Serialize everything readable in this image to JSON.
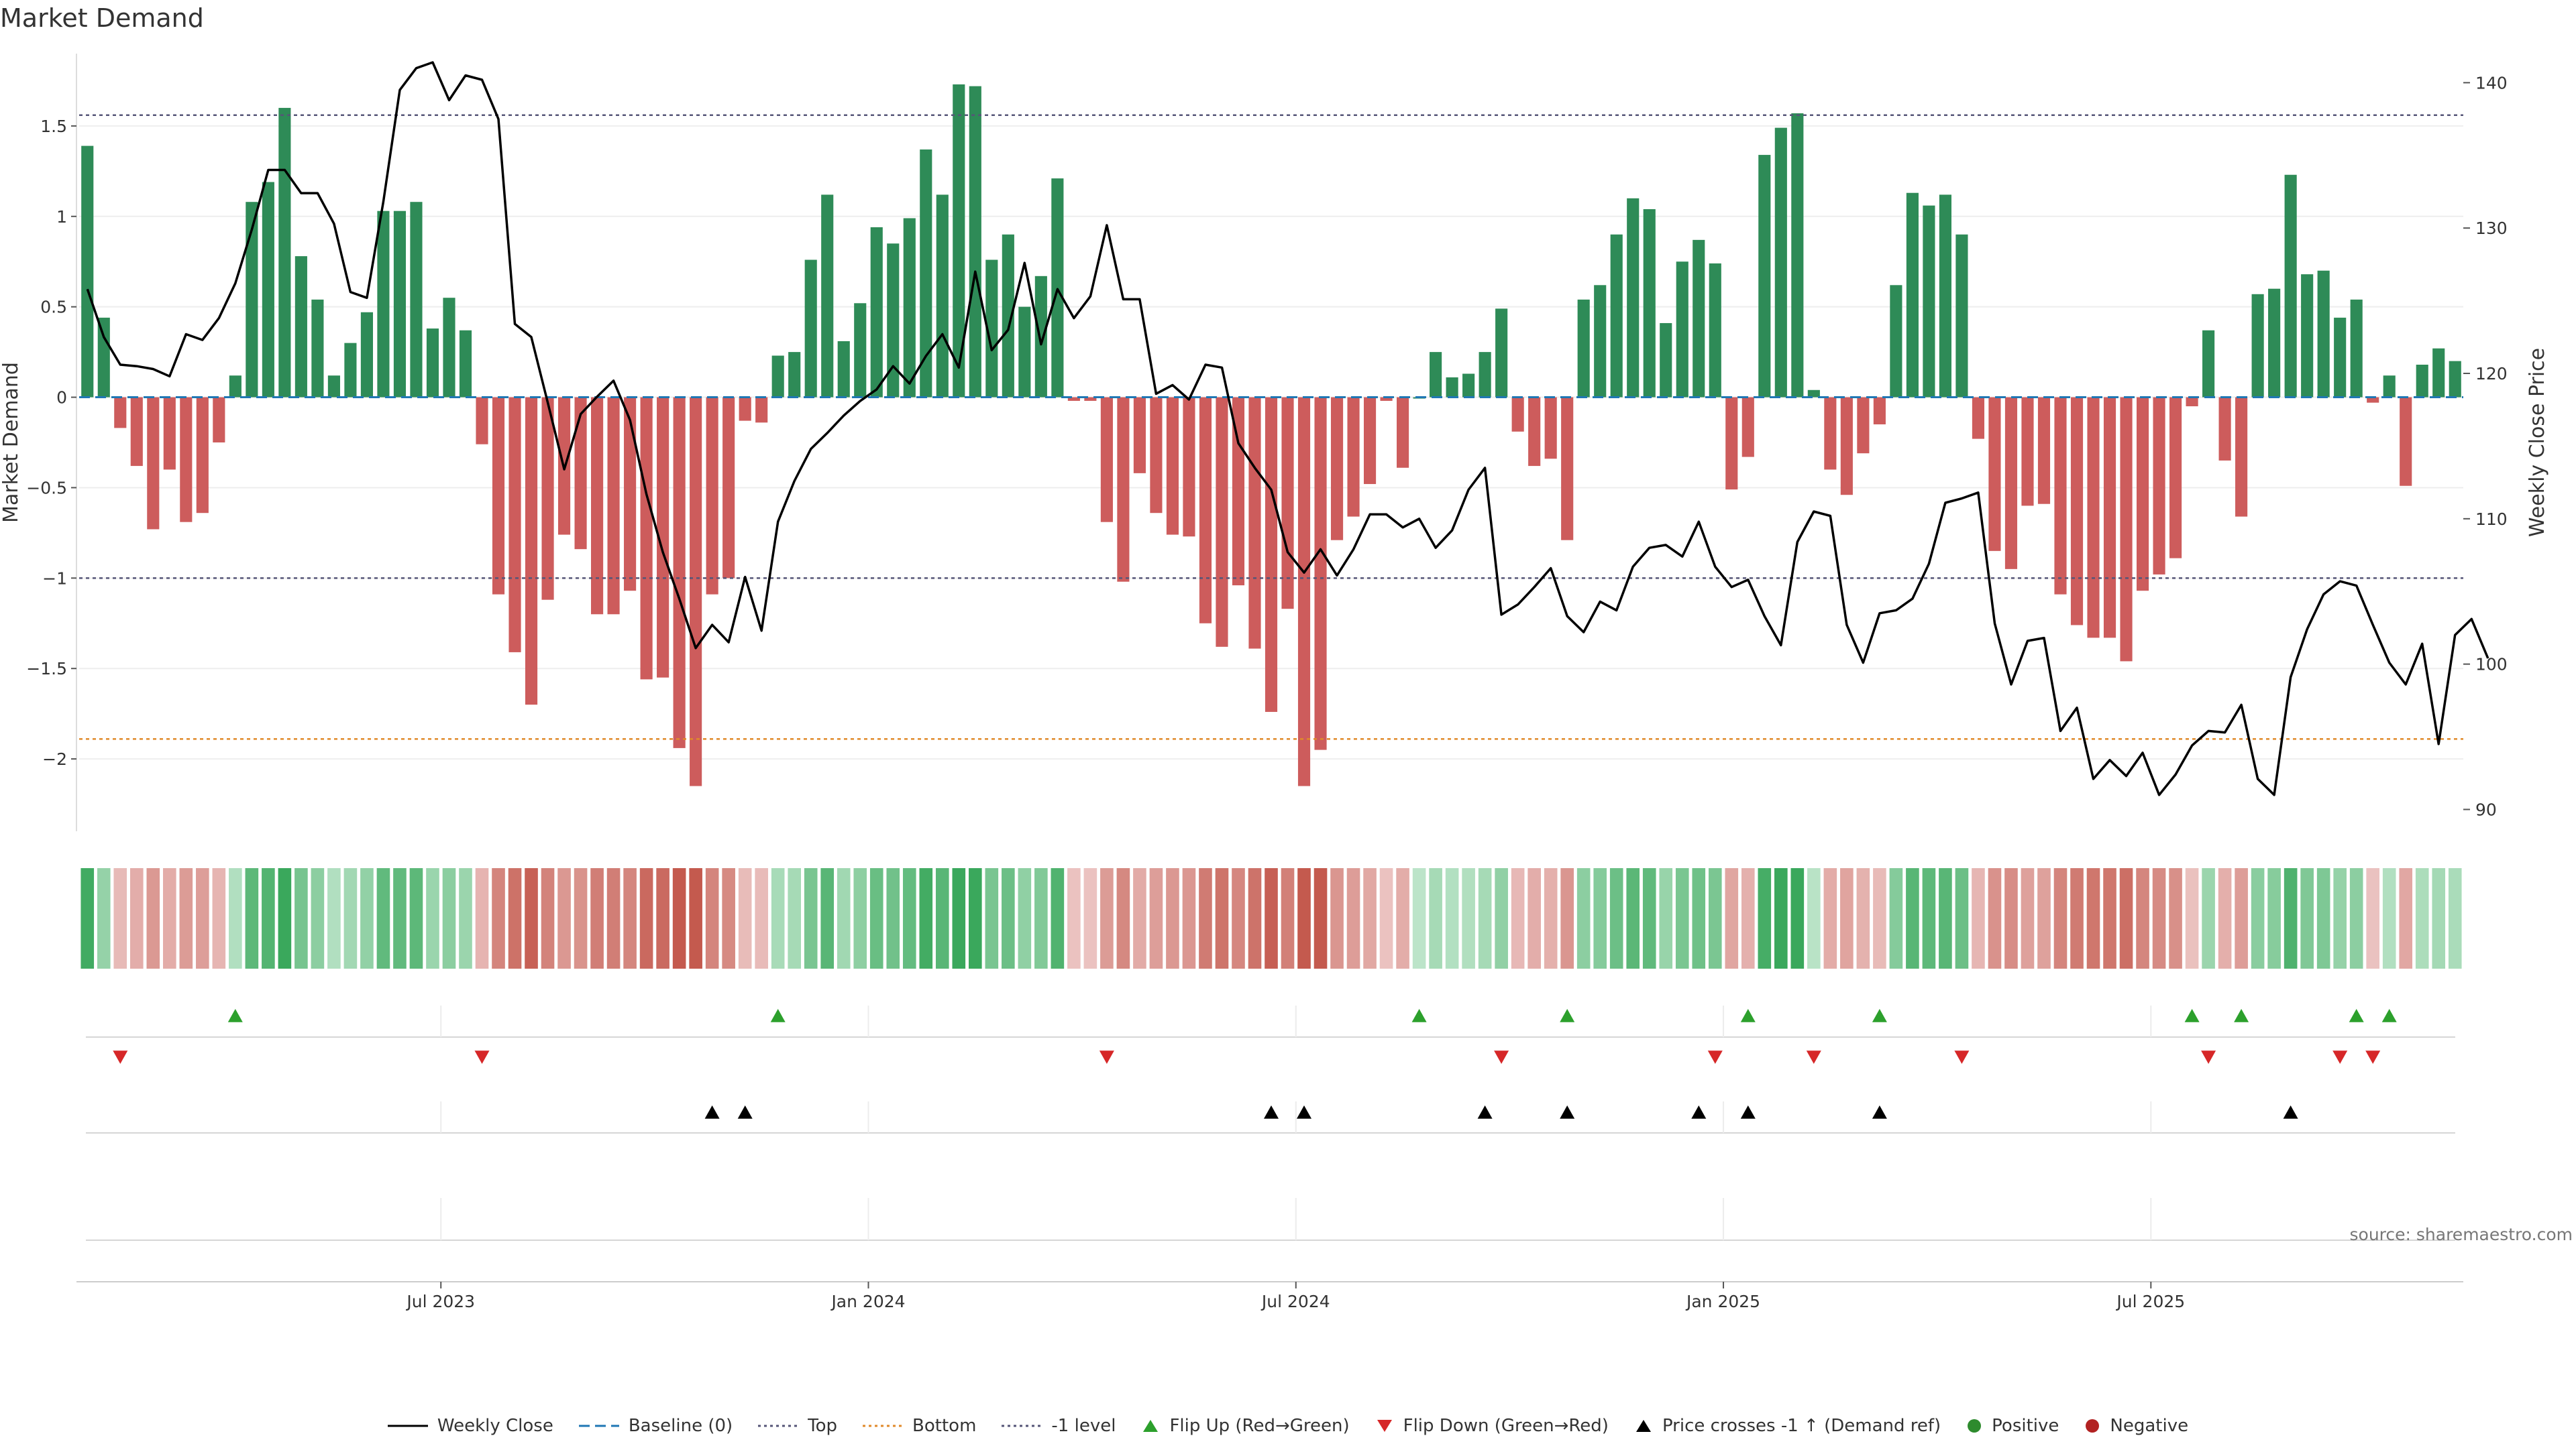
{
  "chart_data": {
    "type": "bar",
    "title": "Market Demand",
    "ylabel": "Market Demand",
    "y2label": "Weekly Close Price",
    "ylim": [
      -2.4,
      1.9
    ],
    "y2lim": [
      88.5,
      142
    ],
    "yticks": [
      1.5,
      1,
      0.5,
      0,
      -0.5,
      -1,
      -1.5,
      -2
    ],
    "ytick_labels": [
      "1.5",
      "1",
      "0.5",
      "0",
      "−0.5",
      "−1",
      "−1.5",
      "−2"
    ],
    "y2ticks": [
      140,
      130,
      120,
      110,
      100,
      90
    ],
    "y2tick_labels": [
      "140",
      "130",
      "120",
      "110",
      "100",
      "90"
    ],
    "xticks": [
      21.5,
      47.5,
      73.5,
      99.5,
      125.5
    ],
    "xtick_labels": [
      "Jul 2023",
      "Jan 2024",
      "Jul 2024",
      "Jan 2025",
      "Jul 2025"
    ],
    "reference_lines": {
      "top": 1.56,
      "bottom": -1.89,
      "minus_one": -1.0
    },
    "colors": {
      "positive": "#2e8b57",
      "negative": "#cd5c5c",
      "line": "#000000",
      "top": "#555577",
      "bottom": "#e08a2a",
      "baseline": "#1f77b4",
      "flip_up": "#2ca02c",
      "flip_down": "#d62728",
      "cross": "#000000"
    },
    "demand": [
      1.39,
      0.44,
      -0.17,
      -0.38,
      -0.73,
      -0.4,
      -0.69,
      -0.64,
      -0.25,
      0.12,
      1.08,
      1.19,
      1.6,
      0.78,
      0.54,
      0.12,
      0.3,
      0.47,
      1.03,
      1.03,
      1.08,
      0.38,
      0.55,
      0.37,
      -0.26,
      -1.09,
      -1.41,
      -1.7,
      -1.12,
      -0.76,
      -0.84,
      -1.2,
      -1.2,
      -1.07,
      -1.56,
      -1.55,
      -1.94,
      -2.15,
      -1.09,
      -1.0,
      -0.13,
      -0.14,
      0.23,
      0.25,
      0.76,
      1.12,
      0.31,
      0.52,
      0.94,
      0.85,
      0.99,
      1.37,
      1.12,
      1.73,
      1.72,
      0.76,
      0.9,
      0.5,
      0.67,
      1.21,
      -0.02,
      -0.02,
      -0.69,
      -1.02,
      -0.42,
      -0.64,
      -0.76,
      -0.77,
      -1.25,
      -1.38,
      -1.04,
      -1.39,
      -1.74,
      -1.17,
      -2.15,
      -1.95,
      -0.79,
      -0.66,
      -0.48,
      -0.02,
      -0.39,
      0.0,
      0.25,
      0.11,
      0.13,
      0.25,
      0.49,
      -0.19,
      -0.38,
      -0.34,
      -0.79,
      0.54,
      0.62,
      0.9,
      1.1,
      1.04,
      0.41,
      0.75,
      0.87,
      0.74,
      -0.51,
      -0.33,
      1.34,
      1.49,
      1.57,
      0.04,
      -0.4,
      -0.54,
      -0.31,
      -0.15,
      0.62,
      1.13,
      1.06,
      1.12,
      0.9,
      -0.23,
      -0.85,
      -0.95,
      -0.6,
      -0.59,
      -1.09,
      -1.26,
      -1.33,
      -1.33,
      -1.46,
      -1.07,
      -0.98,
      -0.89,
      -0.05,
      0.37,
      -0.35,
      -0.66,
      0.57,
      0.6,
      1.23,
      0.68,
      0.7,
      0.44,
      0.54,
      -0.03,
      0.12,
      -0.49,
      0.18,
      0.27,
      0.2
    ],
    "weekly_close": [
      125.8,
      122.5,
      120.6,
      120.5,
      120.3,
      119.8,
      122.7,
      122.3,
      123.8,
      126.2,
      129.9,
      134.0,
      134.0,
      132.4,
      132.4,
      130.3,
      125.6,
      125.2,
      131.8,
      139.5,
      141.0,
      141.4,
      138.8,
      140.5,
      140.2,
      137.5,
      123.4,
      122.5,
      118.0,
      113.4,
      117.2,
      118.4,
      119.5,
      116.8,
      111.7,
      107.7,
      104.5,
      101.1,
      102.7,
      101.5,
      106.0,
      102.3,
      109.8,
      112.6,
      114.8,
      115.9,
      117.1,
      118.1,
      118.9,
      120.5,
      119.3,
      121.2,
      122.7,
      120.4,
      127.0,
      121.6,
      123.0,
      127.6,
      122.0,
      125.8,
      123.8,
      125.3,
      130.2,
      125.1,
      125.1,
      118.6,
      119.2,
      118.2,
      120.6,
      120.4,
      115.2,
      113.5,
      112.0,
      107.7,
      106.3,
      107.9,
      106.1,
      107.9,
      110.3,
      110.3,
      109.4,
      110.0,
      108.0,
      109.2,
      112.0,
      113.5,
      103.4,
      104.1,
      105.3,
      106.6,
      103.3,
      102.2,
      104.3,
      103.7,
      106.7,
      108.0,
      108.2,
      107.4,
      109.8,
      106.7,
      105.3,
      105.8,
      103.3,
      101.3,
      108.4,
      110.5,
      110.2,
      102.7,
      100.1,
      103.5,
      103.7,
      104.5,
      106.9,
      111.1,
      111.4,
      111.8,
      102.8,
      98.6,
      101.6,
      101.8,
      95.4,
      97.0,
      92.1,
      93.4,
      92.3,
      93.9,
      91.0,
      92.4,
      94.4,
      95.4,
      95.3,
      97.2,
      92.1,
      91.0,
      99.1,
      102.4,
      104.8,
      105.7,
      105.4,
      102.7,
      100.1,
      98.6,
      101.4,
      94.5,
      102.0,
      103.1,
      100.4
    ],
    "flip_up": [
      9,
      42,
      81,
      90,
      101,
      109,
      128,
      131,
      138,
      140
    ],
    "flip_down": [
      2,
      24,
      62,
      86,
      99,
      105,
      114,
      129,
      137,
      139
    ],
    "price_crosses_minus1": [
      38,
      40,
      72,
      74,
      85,
      90,
      98,
      101,
      109,
      134
    ],
    "intensity_scale": {
      "min": -2.15,
      "max": 1.73
    },
    "source": "source: sharemaestro.com"
  },
  "legend": [
    {
      "key": "close",
      "label": "Weekly Close"
    },
    {
      "key": "baseline",
      "label": "Baseline (0)"
    },
    {
      "key": "top",
      "label": "Top"
    },
    {
      "key": "bottom",
      "label": "Bottom"
    },
    {
      "key": "minus1",
      "label": "-1 level"
    },
    {
      "key": "flipup",
      "label": "Flip Up (Red→Green)"
    },
    {
      "key": "flipdown",
      "label": "Flip Down (Green→Red)"
    },
    {
      "key": "cross",
      "label": "Price crosses -1 ↑ (Demand ref)"
    },
    {
      "key": "positive",
      "label": "Positive"
    },
    {
      "key": "negative",
      "label": "Negative"
    }
  ]
}
